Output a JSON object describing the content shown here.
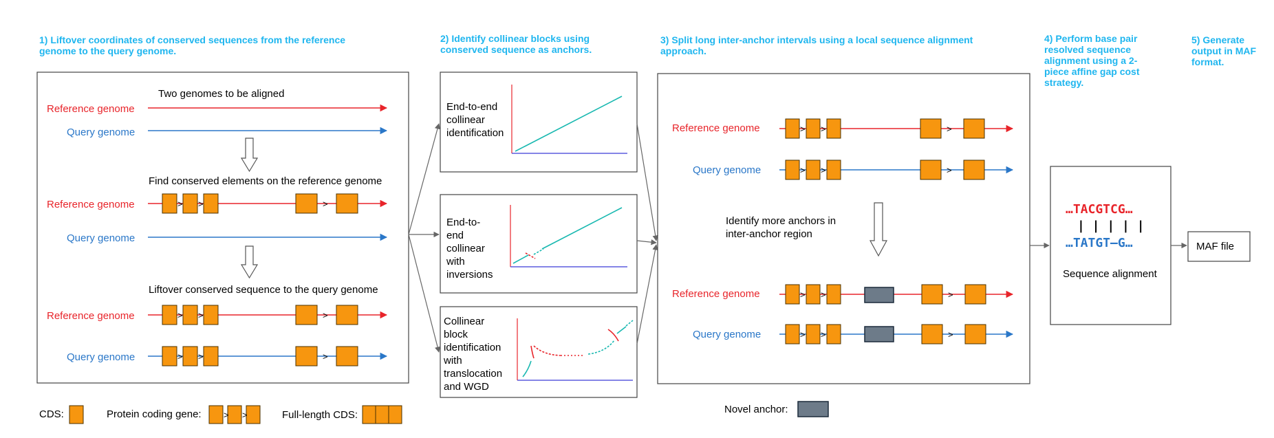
{
  "steps": {
    "s1": {
      "line1": "1) Liftover coordinates of conserved sequences from the reference",
      "line2": "genome to the query genome."
    },
    "s2": {
      "line1": "2) Identify collinear blocks using",
      "line2": "conserved sequence as anchors."
    },
    "s3": {
      "line1": "3) Split long inter-anchor intervals using a local sequence  alignment",
      "line2": "approach."
    },
    "s4": {
      "line1": "4) Perform base pair",
      "line2": "resolved sequence",
      "line3": "alignment using a 2-",
      "line4": "piece affine gap cost",
      "line5": "strategy."
    },
    "s5": {
      "line1": "5) Generate",
      "line2": "output in MAF",
      "line3": "format."
    }
  },
  "panel1": {
    "heading_aligned": "Two genomes to be aligned",
    "heading_find": "Find conserved elements on the reference genome",
    "heading_liftover": "Liftover conserved sequence to the query genome",
    "reference_label": "Reference genome",
    "query_label": "Query genome"
  },
  "panel2": {
    "box_a": [
      "End-to-end",
      "collinear",
      "identification"
    ],
    "box_b": [
      "End-to-",
      "end",
      "collinear",
      "with",
      "inversions"
    ],
    "box_c": [
      "Collinear",
      "block",
      "identification",
      "with",
      "translocation",
      "and WGD"
    ]
  },
  "panel3": {
    "reference_label": "Reference genome",
    "query_label": "Query genome",
    "identify_line1": "Identify more anchors in",
    "identify_line2": "inter-anchor region"
  },
  "panel4": {
    "seq_top": "…TACGTCG…",
    "bars": "| |  | |   |",
    "seq_bottom": "…TATGT–G…",
    "caption": "Sequence alignment"
  },
  "panel5": {
    "maf_label": "MAF file"
  },
  "legend": {
    "cds_label": "CDS:",
    "gene_label": "Protein coding gene:",
    "full_cds_label": "Full-length CDS:",
    "novel_anchor_label": "Novel anchor:"
  },
  "colors": {
    "step_title": "#1fb6ef",
    "reference": "#e8242a",
    "query": "#2a77c8",
    "cds_fill": "#f7960f",
    "teal": "#18b8b0",
    "axis_blue": "#3b3bd6",
    "axis_red": "#e8242a",
    "novel_anchor": "#6d7b89"
  }
}
